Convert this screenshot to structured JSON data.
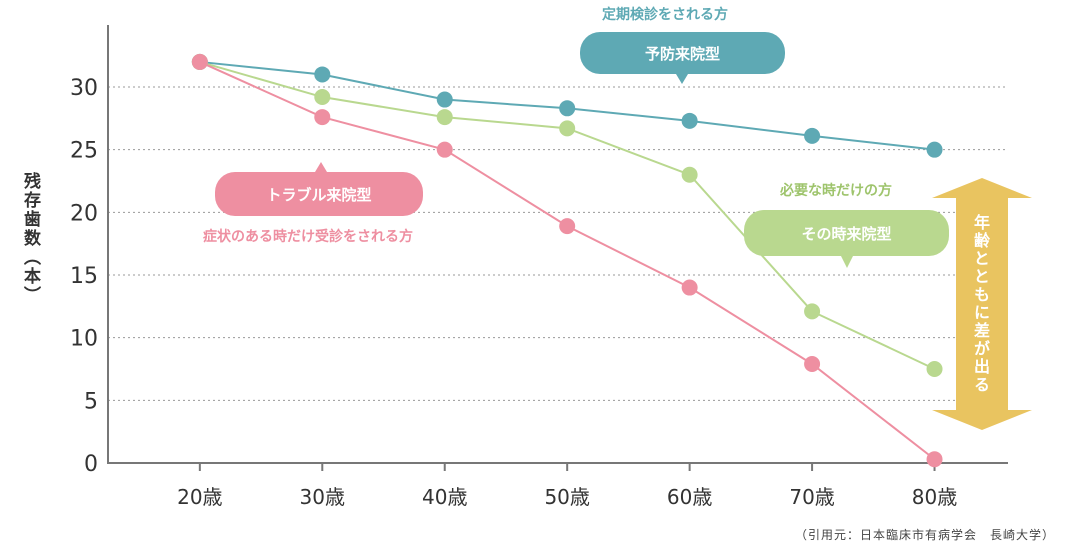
{
  "chart_data": {
    "type": "line",
    "categories": [
      "20歳",
      "30歳",
      "40歳",
      "50歳",
      "60歳",
      "70歳",
      "80歳"
    ],
    "x": [
      20,
      30,
      40,
      50,
      60,
      70,
      80
    ],
    "series": [
      {
        "name": "予防来院型",
        "caption": "定期検診をされる方",
        "color": "#5ea9b4",
        "values": [
          32,
          31,
          29,
          28.3,
          27.3,
          26.1,
          25
        ]
      },
      {
        "name": "その時来院型",
        "caption": "必要な時だけの方",
        "color": "#b9d88f",
        "values": [
          32,
          29.2,
          27.6,
          26.7,
          23,
          12.1,
          7.5
        ]
      },
      {
        "name": "トラブル来院型",
        "caption": "症状のある時だけ受診をされる方",
        "color": "#ee8fa1",
        "values": [
          32,
          27.6,
          25,
          18.9,
          14,
          7.9,
          0.3
        ]
      }
    ],
    "yticks": [
      0,
      5,
      10,
      15,
      20,
      25,
      30
    ],
    "ylim": [
      0,
      35
    ],
    "xlim": [
      12.5,
      86
    ],
    "ylabel": "残存歯数（本）",
    "grid": true,
    "annotation": "年齢とともに差が出る",
    "annotation_color": "#e9c460",
    "axis_color": "#777777"
  },
  "source": "（引用元：日本臨床市有病学会　長崎大学）"
}
